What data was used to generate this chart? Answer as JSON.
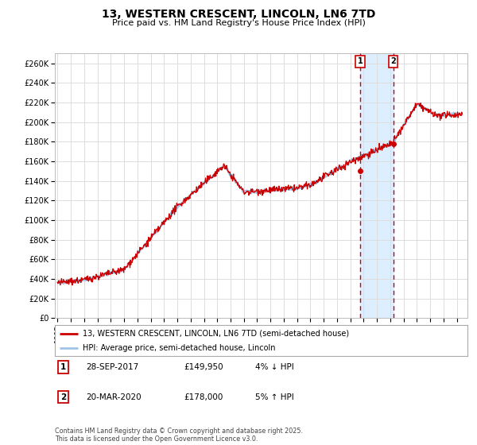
{
  "title": "13, WESTERN CRESCENT, LINCOLN, LN6 7TD",
  "subtitle": "Price paid vs. HM Land Registry's House Price Index (HPI)",
  "ylim": [
    0,
    270000
  ],
  "yticks": [
    0,
    20000,
    40000,
    60000,
    80000,
    100000,
    120000,
    140000,
    160000,
    180000,
    200000,
    220000,
    240000,
    260000
  ],
  "ytick_labels": [
    "£0",
    "£20K",
    "£40K",
    "£60K",
    "£80K",
    "£100K",
    "£120K",
    "£140K",
    "£160K",
    "£180K",
    "£200K",
    "£220K",
    "£240K",
    "£260K"
  ],
  "xlim_start": 1994.8,
  "xlim_end": 2025.8,
  "line1_color": "#cc0000",
  "line2_color": "#a0c4e8",
  "vline_color": "#cc0000",
  "vline1_x": 2017.74,
  "vline2_x": 2020.22,
  "legend_line1": "13, WESTERN CRESCENT, LINCOLN, LN6 7TD (semi-detached house)",
  "legend_line2": "HPI: Average price, semi-detached house, Lincoln",
  "ann1_num": "1",
  "ann1_date": "28-SEP-2017",
  "ann1_price": "£149,950",
  "ann1_pct": "4% ↓ HPI",
  "ann2_num": "2",
  "ann2_date": "20-MAR-2020",
  "ann2_price": "£178,000",
  "ann2_pct": "5% ↑ HPI",
  "footer": "Contains HM Land Registry data © Crown copyright and database right 2025.\nThis data is licensed under the Open Government Licence v3.0.",
  "bg_color": "#ffffff",
  "grid_color": "#dddddd",
  "highlight_bg": "#ddeeff"
}
